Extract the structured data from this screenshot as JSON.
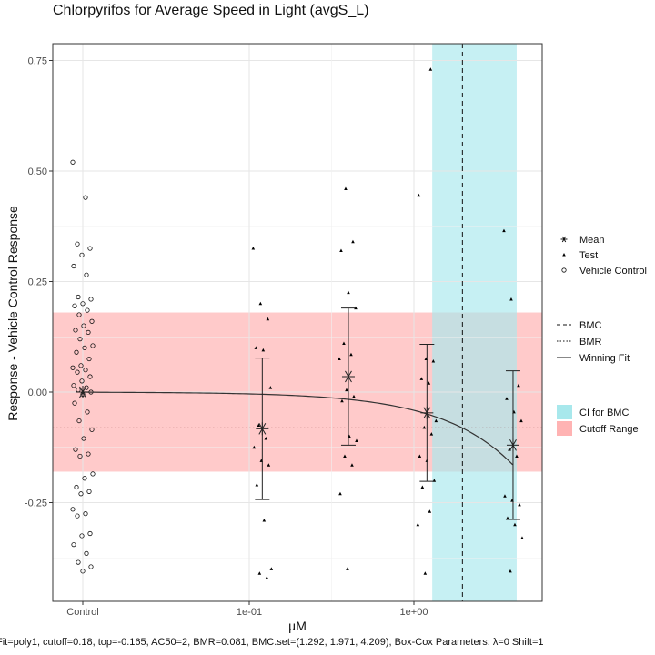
{
  "chart_data": {
    "type": "scatter",
    "title": "Chlorpyrifos for Average Speed in Light (avgS_L)",
    "xlabel": "µM",
    "ylabel": "Response - Vehicle Control Response",
    "x_scale": "log10",
    "x_tick_labels": [
      "Control",
      "1e-01",
      "1e+00"
    ],
    "x_tick_values": [
      "Control",
      0.1,
      1.0
    ],
    "ylim": [
      -0.42,
      0.77
    ],
    "y_ticks": [
      0.75,
      0.5,
      0.25,
      0.0,
      -0.25
    ],
    "y_tick_labels": [
      "0.75",
      "0.50",
      "0.25",
      "0.00",
      "-0.25"
    ],
    "grid": true,
    "legend_position": "right",
    "colors": {
      "ci_band": "#a8e8ec",
      "cutoff_band": "#ffb3b3",
      "points": "#000000",
      "fit": "#333333",
      "bmr_line": "#7f2a2a"
    },
    "cutoff_range": [
      -0.18,
      0.18
    ],
    "bmr_line": -0.081,
    "bmc": 1.971,
    "ci_for_bmc": [
      1.292,
      4.209
    ],
    "vehicle_control": [
      0.52,
      0.44,
      0.335,
      0.325,
      0.31,
      0.285,
      0.265,
      0.215,
      0.21,
      0.2,
      0.195,
      0.185,
      0.175,
      0.16,
      0.15,
      0.14,
      0.135,
      0.12,
      0.105,
      0.1,
      0.09,
      0.075,
      0.06,
      0.055,
      0.05,
      0.045,
      0.035,
      0.025,
      0.015,
      0.01,
      0.005,
      0.0,
      -0.005,
      -0.025,
      -0.045,
      -0.065,
      -0.085,
      -0.105,
      -0.13,
      -0.14,
      -0.145,
      -0.185,
      -0.195,
      -0.215,
      -0.225,
      -0.23,
      -0.265,
      -0.275,
      -0.28,
      -0.32,
      -0.325,
      -0.345,
      -0.365,
      -0.385,
      -0.395,
      -0.405
    ],
    "test_groups": [
      {
        "conc": 0.12,
        "values": [
          0.325,
          0.2,
          0.165,
          0.1,
          0.095,
          0.01,
          -0.075,
          -0.105,
          -0.125,
          -0.155,
          -0.165,
          -0.21,
          -0.29,
          -0.4,
          -0.41,
          -0.42
        ]
      },
      {
        "conc": 0.4,
        "values": [
          0.46,
          0.34,
          0.32,
          0.225,
          0.19,
          0.11,
          0.085,
          0.075,
          0.005,
          -0.01,
          -0.02,
          -0.1,
          -0.11,
          -0.145,
          -0.165,
          -0.23,
          -0.4
        ]
      },
      {
        "conc": 1.2,
        "values": [
          0.73,
          0.445,
          0.075,
          0.07,
          0.03,
          0.02,
          -0.065,
          -0.08,
          -0.095,
          -0.145,
          -0.155,
          -0.2,
          -0.215,
          -0.27,
          -0.3,
          -0.41
        ]
      },
      {
        "conc": 4.0,
        "values": [
          0.365,
          0.21,
          0.015,
          -0.015,
          -0.045,
          -0.065,
          -0.13,
          -0.145,
          -0.235,
          -0.245,
          -0.255,
          -0.285,
          -0.3,
          -0.33,
          -0.405
        ]
      }
    ],
    "means": [
      {
        "conc": "Control",
        "y": 0.0
      },
      {
        "conc": 0.12,
        "y": -0.083,
        "lo": -0.243,
        "hi": 0.077
      },
      {
        "conc": 0.4,
        "y": 0.035,
        "lo": -0.12,
        "hi": 0.19
      },
      {
        "conc": 1.2,
        "y": -0.047,
        "lo": -0.202,
        "hi": 0.108
      },
      {
        "conc": 4.0,
        "y": -0.12,
        "lo": -0.288,
        "hi": 0.048
      }
    ],
    "fit": {
      "model": "poly1",
      "top": -0.165,
      "ac50": 2,
      "x_range": [
        0.0,
        4.0
      ]
    }
  },
  "legend": {
    "shapes": [
      {
        "symbol": "asterisk",
        "label": "Mean"
      },
      {
        "symbol": "small-dot",
        "label": "Test"
      },
      {
        "symbol": "open-circle",
        "label": "Vehicle Control"
      }
    ],
    "lines": [
      {
        "style": "dashed",
        "label": "BMC"
      },
      {
        "style": "dotted",
        "label": "BMR"
      },
      {
        "style": "solid",
        "label": "Winning Fit"
      }
    ],
    "fills": [
      {
        "color": "#a8e8ec",
        "label": "CI for BMC"
      },
      {
        "color": "#ffb3b3",
        "label": "Cutoff Range"
      }
    ]
  },
  "caption": "Fit=poly1, cutoff=0.18, top=-0.165, AC50=2, BMR=0.081, BMC.set=(1.292, 1.971, 4.209), Box-Cox Parameters: λ=0 Shift=1"
}
